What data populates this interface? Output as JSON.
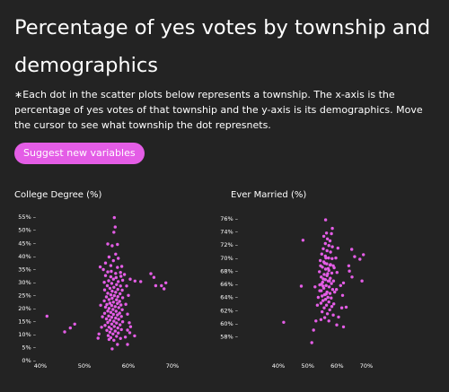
{
  "header": {
    "title": "Percentage of yes votes by township and demographics",
    "note_star": "∗",
    "note": "Each dot in the scatter plots below represents a township. The x-axis is the percentage of yes votes of that township and the y-axis is its demographics. Move the cursor to see what township the dot represnets.",
    "button_label": "Suggest new variables"
  },
  "colors": {
    "background": "#232323",
    "dot": "#e45de6",
    "accent": "#e45de6"
  },
  "chart_data": [
    {
      "type": "scatter",
      "title": "College Degree (%)",
      "xlim": [
        0.4,
        0.7
      ],
      "ylim": [
        0,
        0.55
      ],
      "xticks": [
        0.4,
        0.5,
        0.6,
        0.7
      ],
      "xtick_labels": [
        "40%",
        "50%",
        "60%",
        "70%"
      ],
      "yticks": [
        0,
        0.05,
        0.1,
        0.15,
        0.2,
        0.25,
        0.3,
        0.35,
        0.4,
        0.45,
        0.5,
        0.55
      ],
      "ytick_labels": [
        "0% –",
        "5% –",
        "10% –",
        "15% –",
        "20% –",
        "25% –",
        "30% –",
        "35% –",
        "40% –",
        "45% –",
        "50% –",
        "55% –"
      ],
      "points": [
        [
          0.568,
          0.548
        ],
        [
          0.57,
          0.512
        ],
        [
          0.567,
          0.492
        ],
        [
          0.553,
          0.447
        ],
        [
          0.563,
          0.44
        ],
        [
          0.575,
          0.445
        ],
        [
          0.571,
          0.408
        ],
        [
          0.556,
          0.397
        ],
        [
          0.566,
          0.383
        ],
        [
          0.577,
          0.392
        ],
        [
          0.548,
          0.374
        ],
        [
          0.56,
          0.364
        ],
        [
          0.575,
          0.357
        ],
        [
          0.585,
          0.361
        ],
        [
          0.536,
          0.359
        ],
        [
          0.543,
          0.349
        ],
        [
          0.553,
          0.34
        ],
        [
          0.561,
          0.342
        ],
        [
          0.571,
          0.334
        ],
        [
          0.582,
          0.338
        ],
        [
          0.591,
          0.33
        ],
        [
          0.548,
          0.326
        ],
        [
          0.56,
          0.321
        ],
        [
          0.572,
          0.318
        ],
        [
          0.583,
          0.323
        ],
        [
          0.566,
          0.312
        ],
        [
          0.555,
          0.306
        ],
        [
          0.577,
          0.303
        ],
        [
          0.587,
          0.308
        ],
        [
          0.545,
          0.3
        ],
        [
          0.562,
          0.296
        ],
        [
          0.573,
          0.291
        ],
        [
          0.552,
          0.287
        ],
        [
          0.582,
          0.286
        ],
        [
          0.567,
          0.281
        ],
        [
          0.558,
          0.277
        ],
        [
          0.576,
          0.273
        ],
        [
          0.546,
          0.271
        ],
        [
          0.586,
          0.27
        ],
        [
          0.563,
          0.266
        ],
        [
          0.571,
          0.262
        ],
        [
          0.553,
          0.258
        ],
        [
          0.581,
          0.256
        ],
        [
          0.56,
          0.252
        ],
        [
          0.568,
          0.249
        ],
        [
          0.576,
          0.245
        ],
        [
          0.55,
          0.244
        ],
        [
          0.587,
          0.241
        ],
        [
          0.563,
          0.239
        ],
        [
          0.556,
          0.234
        ],
        [
          0.573,
          0.233
        ],
        [
          0.545,
          0.229
        ],
        [
          0.58,
          0.227
        ],
        [
          0.566,
          0.224
        ],
        [
          0.558,
          0.22
        ],
        [
          0.575,
          0.219
        ],
        [
          0.551,
          0.215
        ],
        [
          0.583,
          0.213
        ],
        [
          0.562,
          0.211
        ],
        [
          0.57,
          0.207
        ],
        [
          0.548,
          0.205
        ],
        [
          0.578,
          0.203
        ],
        [
          0.556,
          0.2
        ],
        [
          0.565,
          0.196
        ],
        [
          0.586,
          0.195
        ],
        [
          0.553,
          0.19
        ],
        [
          0.572,
          0.189
        ],
        [
          0.56,
          0.185
        ],
        [
          0.58,
          0.182
        ],
        [
          0.546,
          0.181
        ],
        [
          0.566,
          0.177
        ],
        [
          0.575,
          0.175
        ],
        [
          0.555,
          0.171
        ],
        [
          0.584,
          0.169
        ],
        [
          0.562,
          0.166
        ],
        [
          0.571,
          0.163
        ],
        [
          0.55,
          0.16
        ],
        [
          0.578,
          0.158
        ],
        [
          0.558,
          0.155
        ],
        [
          0.567,
          0.151
        ],
        [
          0.587,
          0.149
        ],
        [
          0.553,
          0.146
        ],
        [
          0.573,
          0.144
        ],
        [
          0.562,
          0.14
        ],
        [
          0.581,
          0.137
        ],
        [
          0.547,
          0.135
        ],
        [
          0.568,
          0.131
        ],
        [
          0.556,
          0.128
        ],
        [
          0.576,
          0.125
        ],
        [
          0.561,
          0.121
        ],
        [
          0.584,
          0.119
        ],
        [
          0.551,
          0.116
        ],
        [
          0.57,
          0.113
        ],
        [
          0.558,
          0.109
        ],
        [
          0.577,
          0.106
        ],
        [
          0.565,
          0.102
        ],
        [
          0.554,
          0.096
        ],
        [
          0.573,
          0.093
        ],
        [
          0.56,
          0.088
        ],
        [
          0.582,
          0.085
        ],
        [
          0.567,
          0.078
        ],
        [
          0.556,
          0.081
        ],
        [
          0.575,
          0.062
        ],
        [
          0.563,
          0.045
        ],
        [
          0.6,
          0.25
        ],
        [
          0.596,
          0.286
        ],
        [
          0.604,
          0.312
        ],
        [
          0.594,
          0.216
        ],
        [
          0.598,
          0.178
        ],
        [
          0.602,
          0.145
        ],
        [
          0.598,
          0.117
        ],
        [
          0.603,
          0.107
        ],
        [
          0.593,
          0.09
        ],
        [
          0.605,
          0.13
        ],
        [
          0.537,
          0.212
        ],
        [
          0.541,
          0.168
        ],
        [
          0.539,
          0.128
        ],
        [
          0.533,
          0.102
        ],
        [
          0.531,
          0.086
        ],
        [
          0.598,
          0.062
        ],
        [
          0.615,
          0.305
        ],
        [
          0.614,
          0.095
        ],
        [
          0.628,
          0.303
        ],
        [
          0.651,
          0.333
        ],
        [
          0.658,
          0.319
        ],
        [
          0.662,
          0.287
        ],
        [
          0.675,
          0.287
        ],
        [
          0.685,
          0.298
        ],
        [
          0.681,
          0.275
        ],
        [
          0.478,
          0.14
        ],
        [
          0.468,
          0.125
        ],
        [
          0.455,
          0.11
        ],
        [
          0.415,
          0.17
        ]
      ]
    },
    {
      "type": "scatter",
      "title": "Ever Married (%)",
      "xlim": [
        0.4,
        0.7
      ],
      "ylim": [
        0.56,
        0.765
      ],
      "xticks": [
        0.4,
        0.5,
        0.6,
        0.7
      ],
      "xtick_labels": [
        "40%",
        "50%",
        "60%",
        "70%"
      ],
      "yticks": [
        0.58,
        0.6,
        0.62,
        0.64,
        0.66,
        0.68,
        0.7,
        0.72,
        0.74,
        0.76
      ],
      "ytick_labels": [
        "58% –",
        "60% –",
        "62% –",
        "64% –",
        "66% –",
        "68% –",
        "70% –",
        "72% –",
        "74% –",
        "76% –"
      ],
      "points": [
        [
          0.561,
          0.758
        ],
        [
          0.584,
          0.745
        ],
        [
          0.564,
          0.738
        ],
        [
          0.581,
          0.737
        ],
        [
          0.555,
          0.733
        ],
        [
          0.567,
          0.729
        ],
        [
          0.576,
          0.726
        ],
        [
          0.56,
          0.722
        ],
        [
          0.572,
          0.719
        ],
        [
          0.584,
          0.717
        ],
        [
          0.553,
          0.714
        ],
        [
          0.566,
          0.711
        ],
        [
          0.578,
          0.709
        ],
        [
          0.548,
          0.706
        ],
        [
          0.56,
          0.703
        ],
        [
          0.571,
          0.7
        ],
        [
          0.583,
          0.699
        ],
        [
          0.543,
          0.696
        ],
        [
          0.555,
          0.694
        ],
        [
          0.565,
          0.691
        ],
        [
          0.576,
          0.689
        ],
        [
          0.587,
          0.688
        ],
        [
          0.55,
          0.686
        ],
        [
          0.561,
          0.683
        ],
        [
          0.572,
          0.681
        ],
        [
          0.54,
          0.679
        ],
        [
          0.582,
          0.677
        ],
        [
          0.556,
          0.675
        ],
        [
          0.566,
          0.673
        ],
        [
          0.546,
          0.671
        ],
        [
          0.577,
          0.669
        ],
        [
          0.56,
          0.667
        ],
        [
          0.57,
          0.665
        ],
        [
          0.551,
          0.663
        ],
        [
          0.581,
          0.661
        ],
        [
          0.541,
          0.659
        ],
        [
          0.563,
          0.658
        ],
        [
          0.573,
          0.656
        ],
        [
          0.555,
          0.654
        ],
        [
          0.585,
          0.652
        ],
        [
          0.546,
          0.65
        ],
        [
          0.566,
          0.648
        ],
        [
          0.576,
          0.646
        ],
        [
          0.558,
          0.644
        ],
        [
          0.549,
          0.642
        ],
        [
          0.569,
          0.64
        ],
        [
          0.58,
          0.639
        ],
        [
          0.561,
          0.637
        ],
        [
          0.552,
          0.635
        ],
        [
          0.572,
          0.633
        ],
        [
          0.545,
          0.631
        ],
        [
          0.564,
          0.628
        ],
        [
          0.582,
          0.626
        ],
        [
          0.556,
          0.624
        ],
        [
          0.575,
          0.621
        ],
        [
          0.549,
          0.618
        ],
        [
          0.567,
          0.615
        ],
        [
          0.587,
          0.613
        ],
        [
          0.558,
          0.609
        ],
        [
          0.545,
          0.606
        ],
        [
          0.572,
          0.604
        ],
        [
          0.562,
          0.7
        ],
        [
          0.568,
          0.676
        ],
        [
          0.558,
          0.692
        ],
        [
          0.574,
          0.665
        ],
        [
          0.552,
          0.657
        ],
        [
          0.563,
          0.645
        ],
        [
          0.57,
          0.684
        ],
        [
          0.553,
          0.668
        ],
        [
          0.578,
          0.69
        ],
        [
          0.541,
          0.65
        ],
        [
          0.544,
          0.688
        ],
        [
          0.547,
          0.66
        ],
        [
          0.59,
          0.685
        ],
        [
          0.588,
          0.665
        ],
        [
          0.592,
          0.648
        ],
        [
          0.589,
          0.63
        ],
        [
          0.596,
          0.7
        ],
        [
          0.603,
          0.715
        ],
        [
          0.6,
          0.678
        ],
        [
          0.598,
          0.652
        ],
        [
          0.605,
          0.61
        ],
        [
          0.599,
          0.598
        ],
        [
          0.612,
          0.658
        ],
        [
          0.616,
          0.624
        ],
        [
          0.619,
          0.643
        ],
        [
          0.622,
          0.595
        ],
        [
          0.622,
          0.662
        ],
        [
          0.631,
          0.625
        ],
        [
          0.64,
          0.688
        ],
        [
          0.642,
          0.68
        ],
        [
          0.65,
          0.713
        ],
        [
          0.66,
          0.702
        ],
        [
          0.651,
          0.671
        ],
        [
          0.678,
          0.698
        ],
        [
          0.69,
          0.705
        ],
        [
          0.685,
          0.665
        ],
        [
          0.536,
          0.64
        ],
        [
          0.533,
          0.628
        ],
        [
          0.528,
          0.604
        ],
        [
          0.52,
          0.59
        ],
        [
          0.514,
          0.571
        ],
        [
          0.525,
          0.656
        ],
        [
          0.478,
          0.657
        ],
        [
          0.484,
          0.727
        ],
        [
          0.418,
          0.602
        ]
      ]
    }
  ]
}
